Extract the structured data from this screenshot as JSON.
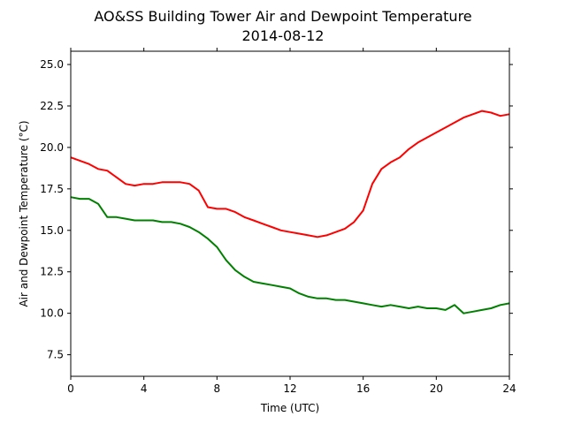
{
  "chart_data": {
    "type": "line",
    "title": "AO&SS Building Tower Air and Dewpoint Temperature",
    "subtitle": "2014-08-12",
    "xlabel": "Time (UTC)",
    "ylabel": "Air and Dewpoint Temperature (°C)",
    "xlim": [
      0,
      24
    ],
    "ylim": [
      6.2,
      25.8
    ],
    "xticks": [
      0,
      4,
      8,
      12,
      16,
      20,
      24
    ],
    "xtick_labels": [
      "0",
      "4",
      "8",
      "12",
      "16",
      "20",
      "24"
    ],
    "yticks": [
      7.5,
      10.0,
      12.5,
      15.0,
      17.5,
      20.0,
      22.5,
      25.0
    ],
    "ytick_labels": [
      "7.5",
      "10.0",
      "12.5",
      "15.0",
      "17.5",
      "20.0",
      "22.5",
      "25.0"
    ],
    "grid": false,
    "series": [
      {
        "color": "#ff0000",
        "x": [
          0,
          0.5,
          1,
          1.5,
          2,
          2.5,
          3,
          3.5,
          4,
          4.5,
          5,
          5.5,
          6,
          6.5,
          7,
          7.5,
          8,
          8.5,
          9,
          9.5,
          10,
          10.5,
          11,
          11.5,
          12,
          12.5,
          13,
          13.5,
          14,
          14.5,
          15,
          15.5,
          16,
          16.5,
          17,
          17.5,
          18,
          18.5,
          19,
          19.5,
          20,
          20.5,
          21,
          21.5,
          22,
          22.5,
          23,
          23.5,
          24
        ],
        "y": [
          19.4,
          19.2,
          19.0,
          18.7,
          18.6,
          18.2,
          17.8,
          17.7,
          17.8,
          17.8,
          17.9,
          17.9,
          17.9,
          17.8,
          17.4,
          16.4,
          16.3,
          16.3,
          16.1,
          15.8,
          15.6,
          15.4,
          15.2,
          15.0,
          14.9,
          14.8,
          14.7,
          14.6,
          14.7,
          14.9,
          15.1,
          15.5,
          16.2,
          17.8,
          18.7,
          19.1,
          19.4,
          19.9,
          20.3,
          20.6,
          20.9,
          21.2,
          21.5,
          21.8,
          22.0,
          22.2,
          22.1,
          21.9,
          22.0
        ]
      },
      {
        "color": "#008000",
        "x": [
          0,
          0.5,
          1,
          1.5,
          2,
          2.5,
          3,
          3.5,
          4,
          4.5,
          5,
          5.5,
          6,
          6.5,
          7,
          7.5,
          8,
          8.5,
          9,
          9.5,
          10,
          10.5,
          11,
          11.5,
          12,
          12.5,
          13,
          13.5,
          14,
          14.5,
          15,
          15.5,
          16,
          16.5,
          17,
          17.5,
          18,
          18.5,
          19,
          19.5,
          20,
          20.5,
          21,
          21.5,
          22,
          22.5,
          23,
          23.5,
          24
        ],
        "y": [
          17.0,
          16.9,
          16.9,
          16.6,
          15.8,
          15.8,
          15.7,
          15.6,
          15.6,
          15.6,
          15.5,
          15.5,
          15.4,
          15.2,
          14.9,
          14.5,
          14.0,
          13.2,
          12.6,
          12.2,
          11.9,
          11.8,
          11.7,
          11.6,
          11.5,
          11.2,
          11.0,
          10.9,
          10.9,
          10.8,
          10.8,
          10.7,
          10.6,
          10.5,
          10.4,
          10.5,
          10.4,
          10.3,
          10.4,
          10.3,
          10.3,
          10.2,
          10.5,
          10.0,
          10.1,
          10.2,
          10.3,
          10.5,
          10.6
        ]
      }
    ]
  }
}
